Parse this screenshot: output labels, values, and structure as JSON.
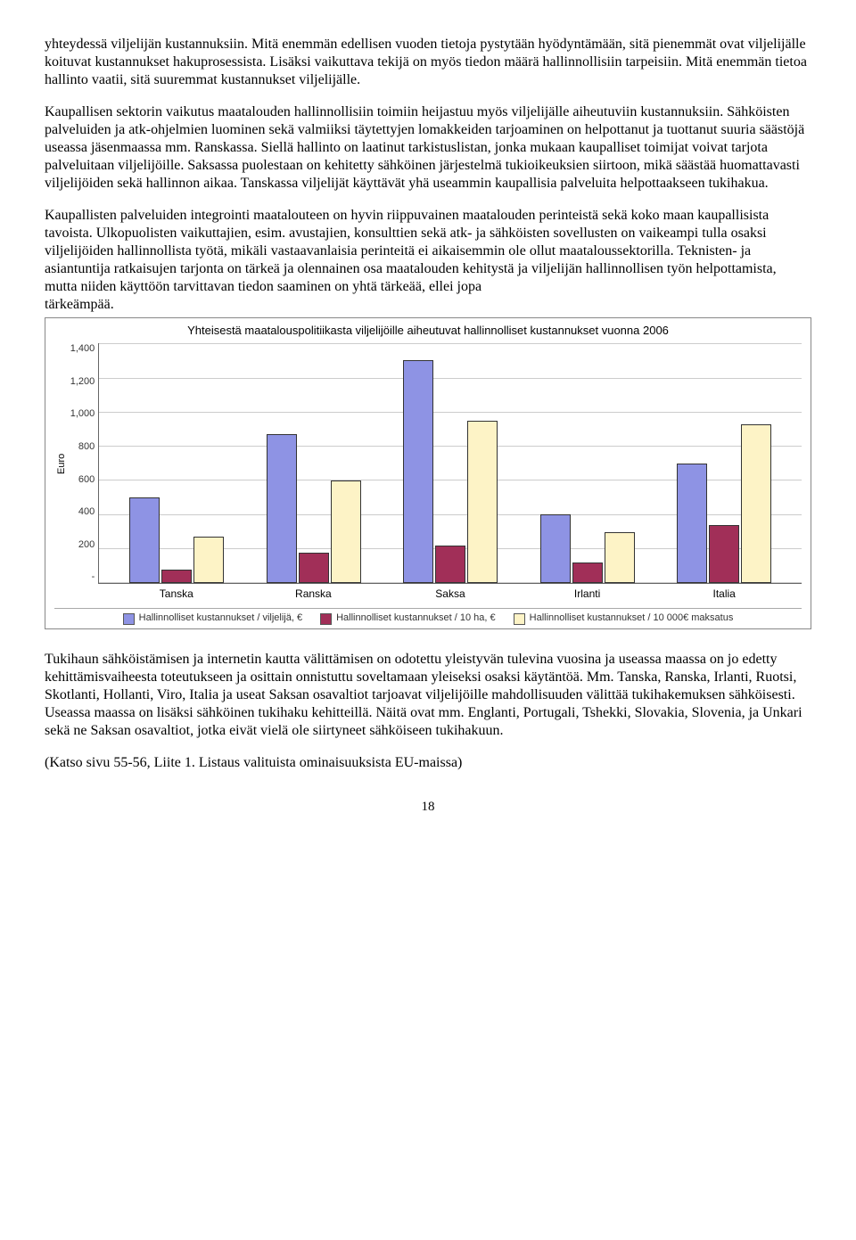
{
  "paragraphs": {
    "p1": "yhteydessä viljelijän kustannuksiin. Mitä enemmän edellisen vuoden tietoja pystytään hyödyntämään, sitä pienemmät ovat viljelijälle koituvat kustannukset hakuprosessista. Lisäksi vaikuttava tekijä on myös tiedon määrä hallinnollisiin tarpeisiin. Mitä enemmän tietoa hallinto vaatii, sitä suuremmat kustannukset viljelijälle.",
    "p2": "Kaupallisen sektorin vaikutus maatalouden hallinnollisiin toimiin heijastuu myös viljelijälle aiheutuviin kustannuksiin. Sähköisten palveluiden ja atk-ohjelmien luominen sekä valmiiksi täytettyjen lomakkeiden tarjoaminen on helpottanut ja tuottanut suuria säästöjä useassa jäsenmaassa mm. Ranskassa. Siellä hallinto on laatinut tarkistuslistan, jonka mukaan kaupalliset toimijat voivat tarjota palveluitaan viljelijöille. Saksassa puolestaan on kehitetty sähköinen järjestelmä tukioikeuksien siirtoon, mikä säästää huomattavasti viljelijöiden sekä hallinnon aikaa. Tanskassa viljelijät käyttävät yhä useammin kaupallisia palveluita helpottaakseen tukihakua.",
    "p3": "Kaupallisten palveluiden integrointi maatalouteen on hyvin riippuvainen maatalouden perinteistä sekä koko maan kaupallisista tavoista. Ulkopuolisten vaikuttajien, esim. avustajien, konsulttien sekä atk- ja sähköisten sovellusten on vaikeampi tulla osaksi viljelijöiden hallinnollista työtä, mikäli vastaavanlaisia perinteitä ei aikaisemmin ole ollut maataloussektorilla. Teknisten- ja asiantuntija ratkaisujen tarjonta on tärkeä ja olennainen osa maatalouden kehitystä ja viljelijän hallinnollisen työn helpottamista, mutta niiden käyttöön tarvittavan tiedon saaminen on yhtä tärkeää, ellei jopa",
    "p3b": "tärkeämpää.",
    "p4": "Tukihaun sähköistämisen ja internetin kautta välittämisen on odotettu yleistyvän tulevina vuosina ja useassa maassa on jo edetty kehittämisvaiheesta toteutukseen ja osittain onnistuttu soveltamaan yleiseksi osaksi käytäntöä. Mm. Tanska, Ranska, Irlanti, Ruotsi, Skotlanti, Hollanti, Viro, Italia ja useat Saksan osavaltiot tarjoavat viljelijöille mahdollisuuden välittää tukihakemuksen sähköisesti. Useassa maassa on lisäksi sähköinen tukihaku kehitteillä. Näitä ovat mm. Englanti, Portugali, Tshekki, Slovakia, Slovenia, ja Unkari sekä ne Saksan osavaltiot, jotka eivät vielä ole siirtyneet sähköiseen tukihakuun.",
    "p5": "(Katso sivu 55-56, Liite 1. Listaus valituista ominaisuuksista EU-maissa)"
  },
  "chart": {
    "title": "Yhteisestä maatalouspolitiikasta viljelijöille aiheutuvat hallinnolliset kustannukset vuonna 2006",
    "y_label": "Euro",
    "y_ticks": [
      "1,400",
      "1,200",
      "1,000",
      "800",
      "600",
      "400",
      "200",
      "-"
    ],
    "ylim_max": 1400,
    "categories": [
      "Tanska",
      "Ranska",
      "Saksa",
      "Irlanti",
      "Italia"
    ],
    "series_colors": [
      "#8e93e4",
      "#a12f58",
      "#fdf3c6"
    ],
    "grid_color": "#cccccc",
    "legend": [
      "Hallinnolliset kustannukset / viljelijä, €",
      "Hallinnolliset kustannukset / 10 ha, €",
      "Hallinnolliset kustannukset / 10 000€ maksatus"
    ],
    "data": [
      {
        "label": "Tanska",
        "values": [
          500,
          80,
          270
        ]
      },
      {
        "label": "Ranska",
        "values": [
          870,
          180,
          600
        ]
      },
      {
        "label": "Saksa",
        "values": [
          1300,
          220,
          950
        ]
      },
      {
        "label": "Irlanti",
        "values": [
          400,
          120,
          300
        ]
      },
      {
        "label": "Italia",
        "values": [
          700,
          340,
          930
        ]
      }
    ]
  },
  "page_number": "18"
}
